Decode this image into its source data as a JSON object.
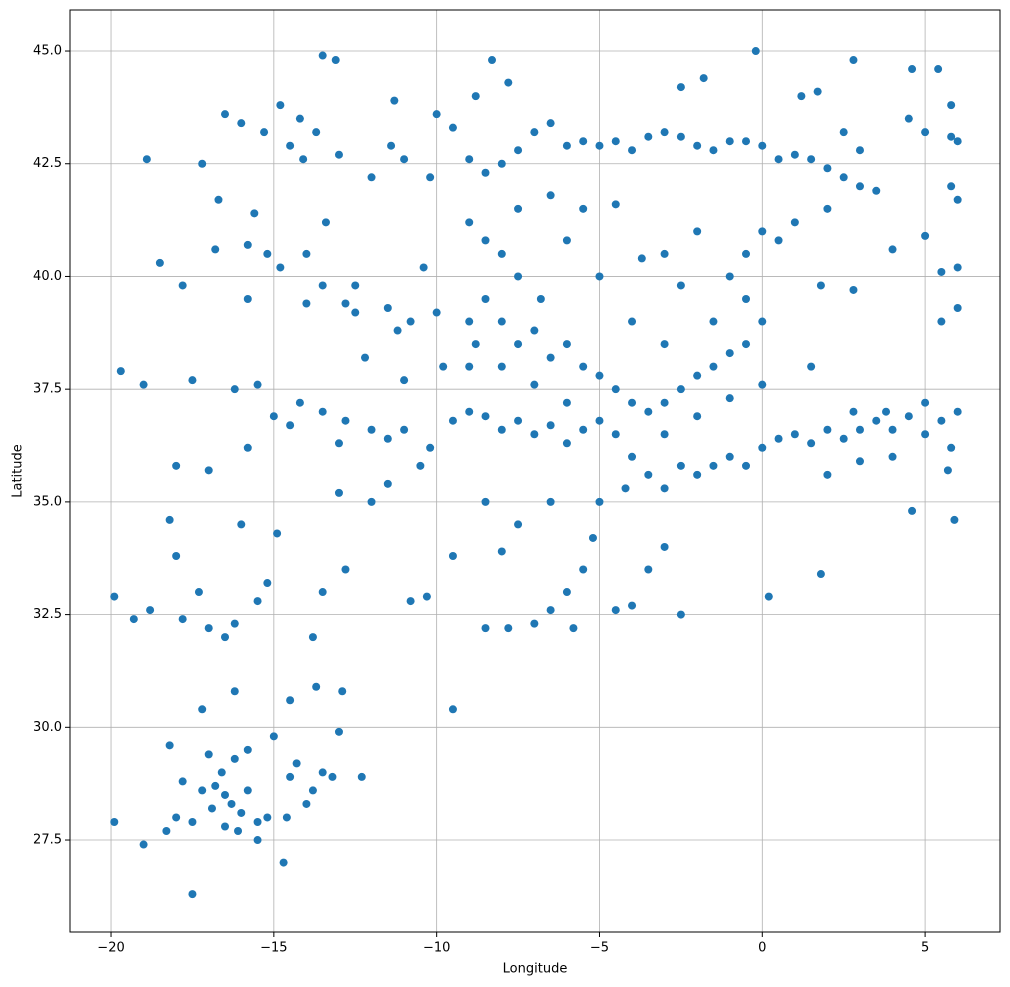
{
  "chart_data": {
    "type": "scatter",
    "xlabel": "Longitude",
    "ylabel": "Latitude",
    "color": "#1f77b4",
    "grid": true,
    "xlim": [
      -21.26,
      7.3
    ],
    "ylim": [
      25.46,
      45.91
    ],
    "xticks": [
      {
        "value": -20,
        "label": "−20"
      },
      {
        "value": -15,
        "label": "−15"
      },
      {
        "value": -10,
        "label": "−10"
      },
      {
        "value": -5,
        "label": "−5"
      },
      0,
      5
    ],
    "yticks": [
      27.5,
      {
        "value": 30,
        "label": "30.0"
      },
      32.5,
      {
        "value": 35,
        "label": "35.0"
      },
      37.5,
      {
        "value": 40,
        "label": "40.0"
      },
      42.5,
      {
        "value": 45,
        "label": "45.0"
      }
    ],
    "x": [
      -16.5,
      -16.3,
      -16.8,
      -16.0,
      -15.5,
      -15.2,
      -17.2,
      -17.8,
      -18.0,
      -16.6,
      -16.2,
      -15.8,
      -14.5,
      -14.3,
      -13.8,
      -13.5,
      -13.2,
      -14.0,
      -14.6,
      -15.5,
      -16.5,
      -17.5,
      -18.3,
      -19.0,
      -19.9,
      -17.5,
      -14.7,
      -17.2,
      -16.2,
      -14.5,
      -13.7,
      -12.9,
      -15.0,
      -13.0,
      -16.9,
      -16.1,
      -15.8,
      -17.0,
      -18.2,
      -12.3,
      -17.0,
      -16.5,
      -16.2,
      -17.3,
      -17.8,
      -19.9,
      -19.3,
      -18.8,
      -15.5,
      -15.2,
      -13.5,
      -12.8,
      -13.8,
      -18.0,
      -18.2,
      -16.0,
      -14.9,
      -13.0,
      -12.0,
      -11.5,
      -17.0,
      -18.0,
      -19.7,
      -19.0,
      -17.5,
      -16.2,
      -15.5,
      -15.0,
      -14.2,
      -13.5,
      -12.8,
      -12.0,
      -11.5,
      -11.0,
      -13.0,
      -14.5,
      -15.8,
      -18.5,
      -17.8,
      -16.8,
      -15.8,
      -15.2,
      -14.8,
      -15.8,
      -14.0,
      -13.5,
      -12.8,
      -12.5,
      -17.2,
      -18.9,
      -16.5,
      -16.0,
      -15.3,
      -14.8,
      -14.2,
      -13.7,
      -14.5,
      -14.1,
      -13.0,
      -13.5,
      -13.1,
      -16.7,
      -15.6,
      -13.4,
      -14.0,
      -9.0,
      -8.5,
      -8.0,
      -7.5,
      -7.0,
      -6.5,
      -6.0,
      -5.5,
      -5.0,
      -4.5,
      -4.0,
      -3.5,
      -3.0,
      -2.5,
      -2.0,
      -1.5,
      -1.0,
      -0.5,
      0.0,
      0.5,
      1.0,
      1.5,
      2.0,
      2.5,
      3.0,
      3.5,
      3.0,
      2.5,
      4.5,
      5.0,
      5.8,
      6.0,
      5.8,
      4.6,
      5.4,
      2.8,
      1.2,
      1.7,
      -1.8,
      -2.5,
      -0.2,
      -7.8,
      -8.3,
      -8.8,
      -11.3,
      -10.0,
      -9.5,
      -11.0,
      -10.2,
      -11.4,
      -12.0,
      -9.0,
      -8.5,
      -8.0,
      -7.5,
      -8.5,
      -9.0,
      -8.8,
      -8.0,
      -7.5,
      -7.0,
      -6.5,
      -6.0,
      -5.5,
      -5.0,
      -4.5,
      -4.0,
      -3.5,
      -3.0,
      -2.5,
      -2.0,
      -1.5,
      -1.0,
      -0.5,
      0.0,
      -0.5,
      -1.0,
      -0.5,
      0.0,
      0.5,
      1.0,
      2.0,
      -3.0,
      -3.7,
      -2.5,
      -4.0,
      -5.0,
      -6.0,
      -5.5,
      -6.5,
      -7.5,
      -4.5,
      -2.0,
      -1.5,
      -3.0,
      -6.8,
      -10.0,
      -10.8,
      -11.2,
      -10.4,
      -11.5,
      -12.2,
      -11.0,
      -9.8,
      -10.5,
      -10.2,
      -9.5,
      -9.0,
      -8.5,
      -8.0,
      -7.5,
      -7.0,
      -6.5,
      -6.0,
      -5.5,
      -5.0,
      -4.5,
      -4.0,
      -3.5,
      -4.2,
      -3.0,
      -2.5,
      -2.0,
      -1.5,
      -1.0,
      -0.5,
      0.0,
      0.5,
      1.0,
      1.5,
      2.0,
      2.5,
      3.0,
      3.5,
      4.0,
      4.5,
      5.0,
      5.5,
      6.0,
      5.8,
      5.7,
      5.9,
      4.6,
      4.0,
      3.0,
      2.0,
      1.8,
      0.2,
      -5.0,
      -5.2,
      -5.5,
      -6.0,
      -6.5,
      -7.0,
      -7.8,
      -8.5,
      -5.8,
      -4.5,
      -4.0,
      -3.5,
      -3.0,
      -2.5,
      -6.5,
      -7.5,
      -8.5,
      -9.5,
      -10.3,
      -10.8,
      -9.5,
      -8.0,
      -9.0,
      -8.0,
      -7.0,
      -6.0,
      -3.0,
      -2.0,
      -1.0,
      0.0,
      1.5,
      2.8,
      3.8,
      5.0,
      -12.5,
      1.8,
      2.8,
      4.0,
      5.5,
      6.0,
      6.0,
      5.5,
      5.0,
      5.8,
      6.0
    ],
    "values": [
      28.5,
      28.3,
      28.7,
      28.1,
      27.9,
      28.0,
      28.6,
      28.8,
      28.0,
      29.0,
      29.3,
      29.5,
      28.9,
      29.2,
      28.6,
      29.0,
      28.9,
      28.3,
      28.0,
      27.5,
      27.8,
      27.9,
      27.7,
      27.4,
      27.9,
      26.3,
      27.0,
      30.4,
      30.8,
      30.6,
      30.9,
      30.8,
      29.8,
      29.9,
      28.2,
      27.7,
      28.6,
      29.4,
      29.6,
      28.9,
      32.2,
      32.0,
      32.3,
      33.0,
      32.4,
      32.9,
      32.4,
      32.6,
      32.8,
      33.2,
      33.0,
      33.5,
      32.0,
      33.8,
      34.6,
      34.5,
      34.3,
      35.2,
      35.0,
      35.4,
      35.7,
      35.8,
      37.9,
      37.6,
      37.7,
      37.5,
      37.6,
      36.9,
      37.2,
      37.0,
      36.8,
      36.6,
      36.4,
      36.6,
      36.3,
      36.7,
      36.2,
      40.3,
      39.8,
      40.6,
      40.7,
      40.5,
      40.2,
      39.5,
      39.4,
      39.8,
      39.4,
      39.8,
      42.5,
      42.6,
      43.6,
      43.4,
      43.2,
      43.8,
      43.5,
      43.2,
      42.9,
      42.6,
      42.7,
      44.9,
      44.8,
      41.7,
      41.4,
      41.2,
      40.5,
      42.6,
      42.3,
      42.5,
      42.8,
      43.2,
      43.4,
      42.9,
      43.0,
      42.9,
      43.0,
      42.8,
      43.1,
      43.2,
      43.1,
      42.9,
      42.8,
      43.0,
      43.0,
      42.9,
      42.6,
      42.7,
      42.6,
      42.4,
      42.2,
      42.0,
      41.9,
      42.8,
      43.2,
      43.5,
      43.2,
      43.1,
      43.0,
      43.8,
      44.6,
      44.6,
      44.8,
      44.0,
      44.1,
      44.4,
      44.2,
      45.0,
      44.3,
      44.8,
      44.0,
      43.9,
      43.6,
      43.3,
      42.6,
      42.2,
      42.9,
      42.2,
      41.2,
      40.8,
      40.5,
      40.0,
      39.5,
      39.0,
      38.5,
      38.0,
      38.5,
      38.8,
      38.2,
      38.5,
      38.0,
      37.8,
      37.5,
      37.2,
      37.0,
      37.2,
      37.5,
      37.8,
      38.0,
      38.3,
      38.5,
      39.0,
      39.5,
      40.0,
      40.5,
      41.0,
      40.8,
      41.2,
      41.5,
      40.5,
      40.4,
      39.8,
      39.0,
      40.0,
      40.8,
      41.5,
      41.8,
      41.5,
      41.6,
      41.0,
      39.0,
      38.5,
      39.5,
      39.2,
      39.0,
      38.8,
      40.2,
      39.3,
      38.2,
      37.7,
      38.0,
      35.8,
      36.2,
      36.8,
      37.0,
      36.9,
      36.6,
      36.8,
      36.5,
      36.7,
      36.3,
      36.6,
      36.8,
      36.5,
      36.0,
      35.6,
      35.3,
      35.3,
      35.8,
      35.6,
      35.8,
      36.0,
      35.8,
      36.2,
      36.4,
      36.5,
      36.3,
      36.6,
      36.4,
      36.6,
      36.8,
      36.6,
      36.9,
      36.5,
      36.8,
      37.0,
      36.2,
      35.7,
      34.6,
      34.8,
      36.0,
      35.9,
      35.6,
      33.4,
      32.9,
      35.0,
      34.2,
      33.5,
      33.0,
      32.6,
      32.3,
      32.2,
      32.2,
      32.2,
      32.6,
      32.7,
      33.5,
      34.0,
      32.5,
      35.0,
      34.5,
      35.0,
      33.8,
      32.9,
      32.8,
      30.4,
      33.9,
      38.0,
      39.0,
      37.6,
      37.2,
      36.5,
      36.9,
      37.3,
      37.6,
      38.0,
      37.0,
      37.0,
      37.2,
      39.2,
      39.8,
      39.7,
      40.6,
      40.1,
      40.2,
      39.3,
      39.0,
      40.9,
      42.0,
      41.7
    ]
  }
}
